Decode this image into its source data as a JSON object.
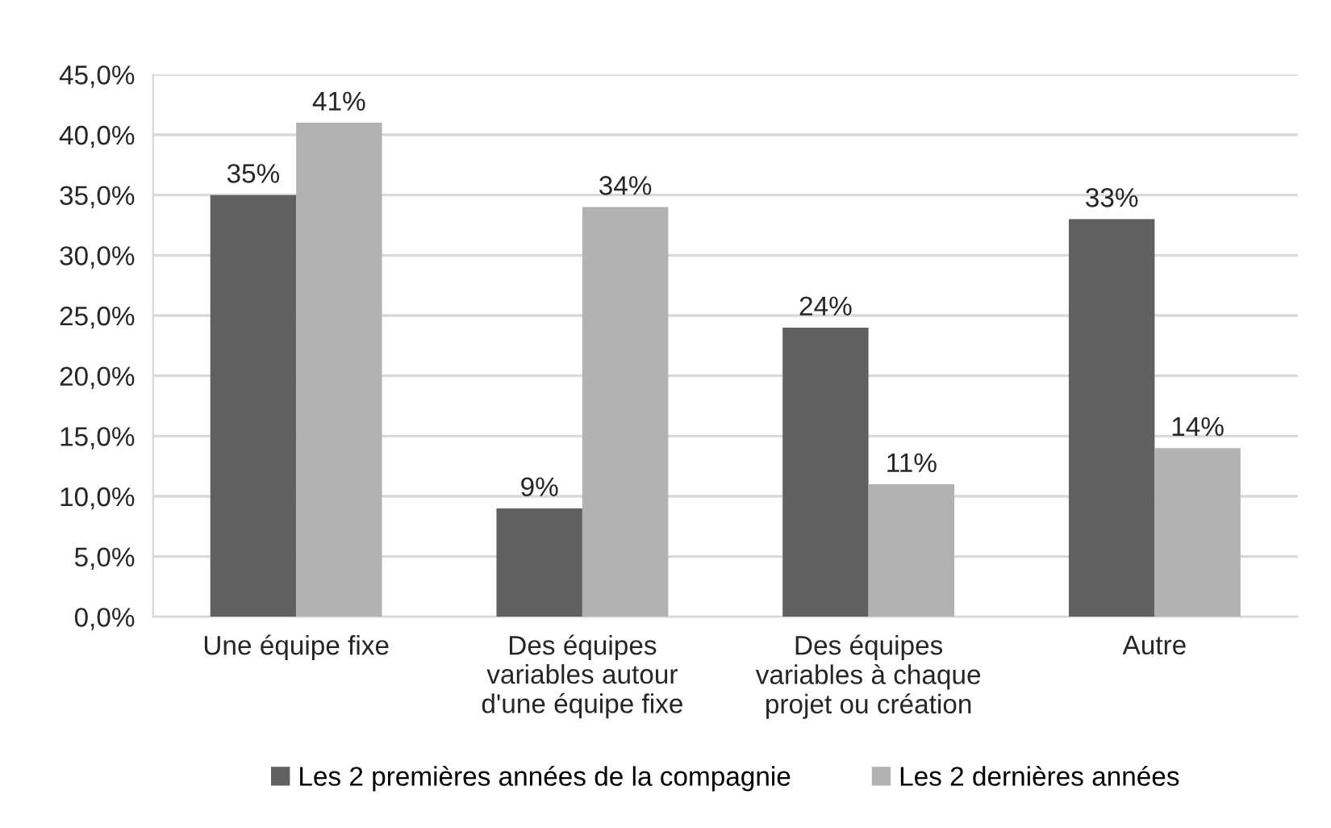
{
  "chart_data": {
    "type": "bar",
    "categories": [
      "Une équipe fixe",
      "Des équipes\nvariables autour\nd'une équipe fixe",
      "Des équipes\nvariables à chaque\nprojet ou création",
      "Autre"
    ],
    "series": [
      {
        "name": "Les 2 premières années de la compagnie",
        "color": "#606060",
        "values": [
          35,
          9,
          24,
          33
        ],
        "value_labels": [
          "35%",
          "9%",
          "24%",
          "33%"
        ]
      },
      {
        "name": "Les 2 dernières années",
        "color": "#b2b2b2",
        "values": [
          41,
          34,
          11,
          14
        ],
        "value_labels": [
          "41%",
          "34%",
          "11%",
          "14%"
        ]
      }
    ],
    "ylim": [
      0,
      45
    ],
    "yticks": [
      {
        "value": 0,
        "label": "0,0%"
      },
      {
        "value": 5,
        "label": "5,0%"
      },
      {
        "value": 10,
        "label": "10,0%"
      },
      {
        "value": 15,
        "label": "15,0%"
      },
      {
        "value": 20,
        "label": "20,0%"
      },
      {
        "value": 25,
        "label": "25,0%"
      },
      {
        "value": 30,
        "label": "30,0%"
      },
      {
        "value": 35,
        "label": "35,0%"
      },
      {
        "value": 40,
        "label": "40,0%"
      },
      {
        "value": 45,
        "label": "45,0%"
      }
    ],
    "grid": "y",
    "legend": "bottom"
  }
}
